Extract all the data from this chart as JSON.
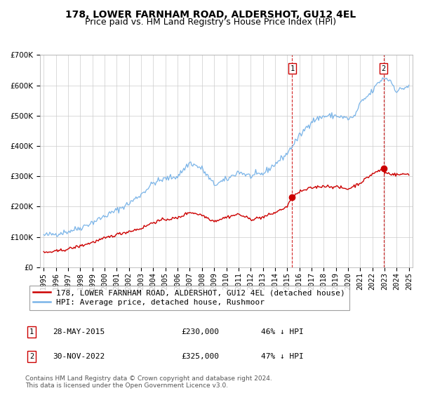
{
  "title": "178, LOWER FARNHAM ROAD, ALDERSHOT, GU12 4EL",
  "subtitle": "Price paid vs. HM Land Registry's House Price Index (HPI)",
  "ylim": [
    0,
    700000
  ],
  "yticks": [
    0,
    100000,
    200000,
    300000,
    400000,
    500000,
    600000,
    700000
  ],
  "hpi_color": "#7ab4e8",
  "price_color": "#cc0000",
  "grid_color": "#cccccc",
  "bg_color": "#ffffff",
  "annotation1": {
    "label": "1",
    "date": "28-MAY-2015",
    "price": 230000,
    "price_str": "£230,000",
    "pct": "46%",
    "x": 2015.41
  },
  "annotation2": {
    "label": "2",
    "date": "30-NOV-2022",
    "price": 325000,
    "price_str": "£325,000",
    "pct": "47%",
    "x": 2022.92
  },
  "legend_property": "178, LOWER FARNHAM ROAD, ALDERSHOT, GU12 4EL (detached house)",
  "legend_hpi": "HPI: Average price, detached house, Rushmoor",
  "footer1": "Contains HM Land Registry data © Crown copyright and database right 2024.",
  "footer2": "This data is licensed under the Open Government Licence v3.0.",
  "title_fontsize": 10,
  "subtitle_fontsize": 9,
  "tick_fontsize": 7.5,
  "legend_fontsize": 8,
  "footer_fontsize": 6.5,
  "table_fontsize": 8
}
